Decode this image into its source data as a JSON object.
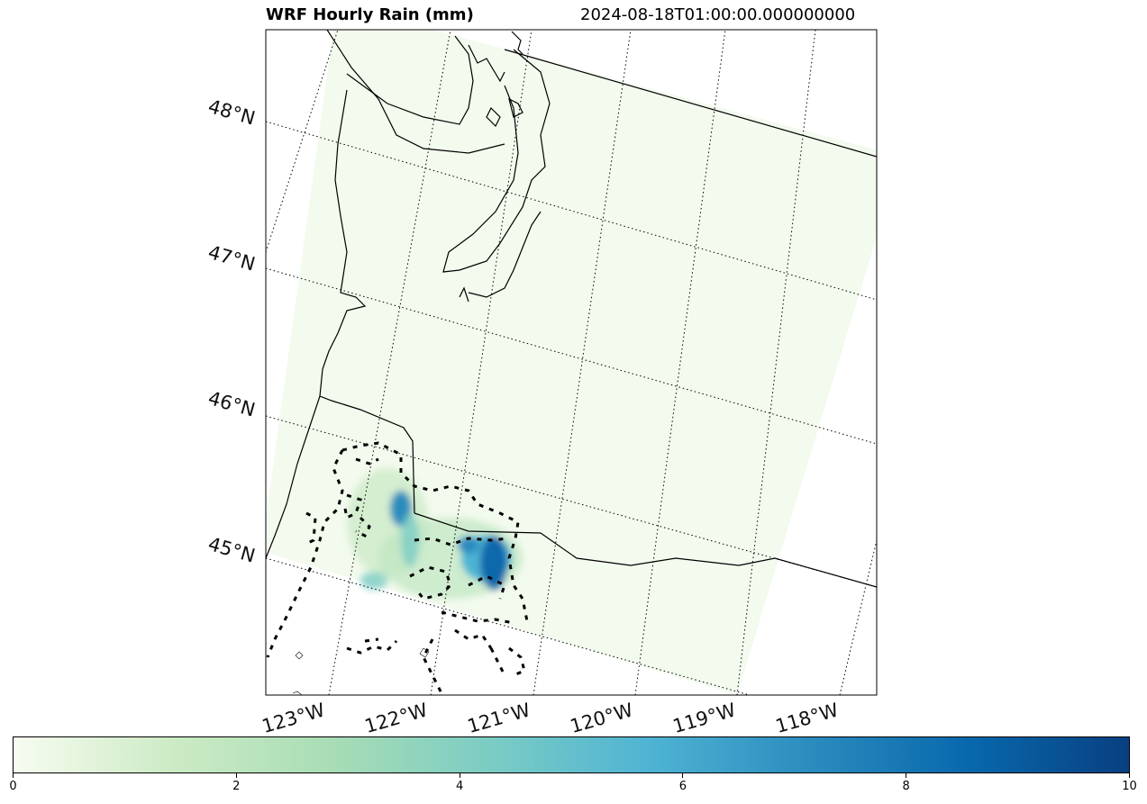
{
  "title": {
    "left": "WRF Hourly Rain (mm)",
    "right": "2024-08-18T01:00:00.000000000"
  },
  "map": {
    "lat_labels": [
      "48°N",
      "47°N",
      "46°N",
      "45°N"
    ],
    "lon_labels": [
      "123°W",
      "122°W",
      "121°W",
      "120°W",
      "119°W",
      "118°W"
    ]
  },
  "colorbar": {
    "min": 0,
    "max": 10,
    "ticks": [
      "0",
      "2",
      "4",
      "6",
      "8",
      "10"
    ],
    "colors": [
      "#f7fcf0",
      "#ccebc5",
      "#a8ddb5",
      "#7bccc4",
      "#4eb3d3",
      "#2b8cbe",
      "#0868ac",
      "#084081"
    ]
  }
}
